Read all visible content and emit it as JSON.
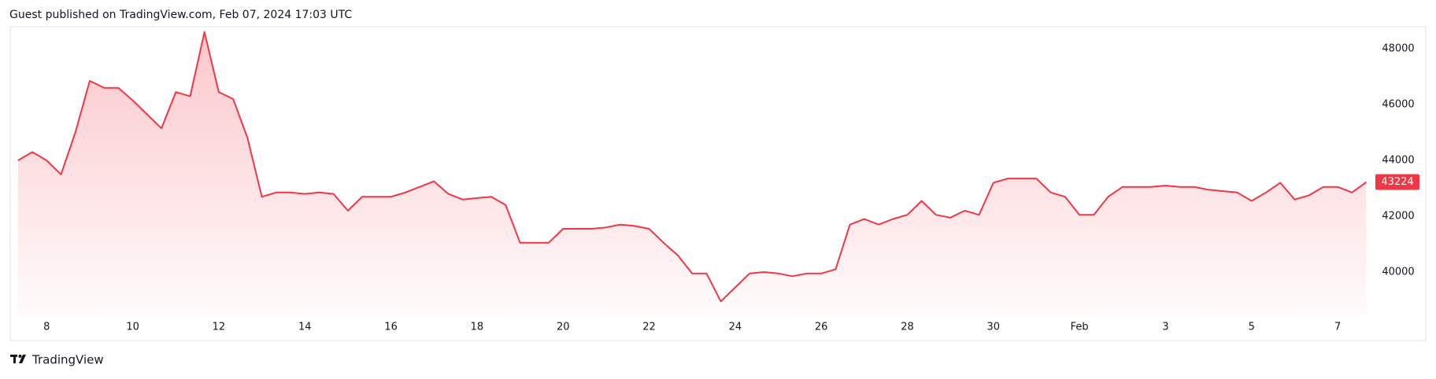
{
  "header": "Guest published on TradingView.com, Feb 07, 2024 17:03 UTC",
  "footer": "TradingView",
  "chart_data": {
    "type": "area",
    "color": "#f23645",
    "categories": [
      null,
      null,
      "8",
      null,
      null,
      null,
      null,
      null,
      "10",
      null,
      null,
      null,
      null,
      null,
      "12",
      null,
      null,
      null,
      null,
      null,
      "14",
      null,
      null,
      null,
      null,
      null,
      "16",
      null,
      null,
      null,
      null,
      null,
      "18",
      null,
      null,
      null,
      null,
      null,
      "20",
      null,
      null,
      null,
      null,
      null,
      "22",
      null,
      null,
      null,
      null,
      null,
      "24",
      null,
      null,
      null,
      null,
      null,
      "26",
      null,
      null,
      null,
      null,
      null,
      "28",
      null,
      null,
      null,
      null,
      null,
      "30",
      null,
      null,
      null,
      null,
      null,
      "Feb",
      null,
      null,
      null,
      null,
      null,
      "3",
      null,
      null,
      null,
      null,
      null,
      "5",
      null,
      null,
      null,
      null,
      null,
      "7",
      null,
      null
    ],
    "values": [
      44000,
      44300,
      44000,
      43500,
      45000,
      46850,
      46600,
      46600,
      46150,
      45650,
      45150,
      46450,
      46300,
      48600,
      46450,
      46200,
      44800,
      42700,
      42850,
      42850,
      42800,
      42850,
      42800,
      42200,
      42700,
      42700,
      42700,
      42850,
      43050,
      43250,
      42800,
      42600,
      42650,
      42700,
      42400,
      41050,
      41050,
      41050,
      41550,
      41550,
      41550,
      41600,
      41700,
      41650,
      41550,
      41050,
      40600,
      39950,
      39950,
      38950,
      39450,
      39950,
      40000,
      39950,
      39850,
      39950,
      39950,
      40100,
      41700,
      41900,
      41700,
      41900,
      42050,
      42550,
      42050,
      41950,
      42200,
      42050,
      43200,
      43350,
      43350,
      43350,
      42850,
      42700,
      42050,
      42050,
      42700,
      43050,
      43050,
      43050,
      43100,
      43050,
      43050,
      42950,
      42900,
      42850,
      42550,
      42850,
      43200,
      42600,
      42750,
      43050,
      43050,
      42850,
      43224
    ],
    "last_price": 43224,
    "ylim": [
      38450,
      48790
    ],
    "yticks": [
      40000,
      42000,
      44000,
      46000,
      48000
    ]
  }
}
